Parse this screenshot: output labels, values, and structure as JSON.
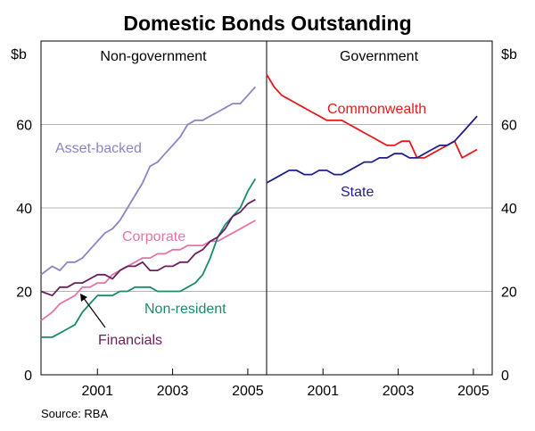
{
  "title": "Domestic Bonds Outstanding",
  "source": "Source: RBA",
  "colors": {
    "asset_backed": "#8c84c6",
    "corporate": "#e574a8",
    "non_resident": "#188a6e",
    "financials": "#6a1f5e",
    "commonwealth": "#e41a1c",
    "state": "#1f1f8c",
    "grid": "#b4b4b4",
    "axis": "#000000"
  },
  "chart_data": [
    {
      "type": "line",
      "panel_title": "Non-government",
      "ylabel": "$b",
      "ylim": [
        0,
        80
      ],
      "yticks": [
        0,
        20,
        40,
        60
      ],
      "xlim": [
        1999.5,
        2005.5
      ],
      "xticks": [
        2001,
        2003,
        2005
      ],
      "xtick_labels": [
        "2001",
        "2003",
        "2005"
      ],
      "grid": true,
      "series": [
        {
          "name": "Asset-backed",
          "color_key": "asset_backed",
          "x": [
            1999.5,
            1999.8,
            2000.0,
            2000.2,
            2000.4,
            2000.6,
            2000.8,
            2001.0,
            2001.2,
            2001.4,
            2001.6,
            2001.8,
            2002.0,
            2002.2,
            2002.4,
            2002.6,
            2002.8,
            2003.0,
            2003.2,
            2003.4,
            2003.6,
            2003.8,
            2004.0,
            2004.2,
            2004.4,
            2004.6,
            2004.8,
            2005.0,
            2005.2
          ],
          "values": [
            24,
            26,
            25,
            27,
            27,
            28,
            30,
            32,
            34,
            35,
            37,
            40,
            43,
            46,
            50,
            51,
            53,
            55,
            57,
            60,
            61,
            61,
            62,
            63,
            64,
            65,
            65,
            67,
            69
          ]
        },
        {
          "name": "Corporate",
          "color_key": "corporate",
          "x": [
            1999.5,
            1999.8,
            2000.0,
            2000.2,
            2000.4,
            2000.6,
            2000.8,
            2001.0,
            2001.2,
            2001.4,
            2001.6,
            2001.8,
            2002.0,
            2002.2,
            2002.4,
            2002.6,
            2002.8,
            2003.0,
            2003.2,
            2003.4,
            2003.6,
            2003.8,
            2004.0,
            2004.2,
            2004.4,
            2004.6,
            2004.8,
            2005.0,
            2005.2
          ],
          "values": [
            13,
            15,
            17,
            18,
            19,
            21,
            21,
            22,
            22,
            24,
            25,
            26,
            27,
            28,
            28,
            29,
            29,
            30,
            30,
            31,
            31,
            31,
            32,
            32,
            33,
            34,
            35,
            36,
            37
          ]
        },
        {
          "name": "Non-resident",
          "color_key": "non_resident",
          "x": [
            1999.5,
            1999.8,
            2000.0,
            2000.2,
            2000.4,
            2000.6,
            2000.8,
            2001.0,
            2001.2,
            2001.4,
            2001.6,
            2001.8,
            2002.0,
            2002.2,
            2002.4,
            2002.6,
            2002.8,
            2003.0,
            2003.2,
            2003.4,
            2003.6,
            2003.8,
            2004.0,
            2004.2,
            2004.4,
            2004.6,
            2004.8,
            2005.0,
            2005.2
          ],
          "values": [
            9,
            9,
            10,
            11,
            12,
            15,
            17,
            19,
            19,
            19,
            20,
            20,
            21,
            21,
            21,
            20,
            20,
            20,
            20,
            21,
            22,
            24,
            28,
            33,
            36,
            38,
            40,
            44,
            47
          ]
        },
        {
          "name": "Financials",
          "color_key": "financials",
          "x": [
            1999.5,
            1999.8,
            2000.0,
            2000.2,
            2000.4,
            2000.6,
            2000.8,
            2001.0,
            2001.2,
            2001.4,
            2001.6,
            2001.8,
            2002.0,
            2002.2,
            2002.4,
            2002.6,
            2002.8,
            2003.0,
            2003.2,
            2003.4,
            2003.6,
            2003.8,
            2004.0,
            2004.2,
            2004.4,
            2004.6,
            2004.8,
            2005.0,
            2005.2
          ],
          "values": [
            20,
            19,
            21,
            21,
            22,
            22,
            23,
            24,
            24,
            23,
            25,
            26,
            26,
            27,
            25,
            25,
            26,
            26,
            27,
            27,
            29,
            30,
            32,
            33,
            35,
            38,
            39,
            41,
            42
          ]
        }
      ],
      "annotations": [
        "Asset-backed",
        "Corporate",
        "Non-resident",
        "Financials"
      ]
    },
    {
      "type": "line",
      "panel_title": "Government",
      "ylabel": "$b",
      "ylim": [
        0,
        80
      ],
      "yticks": [
        0,
        20,
        40,
        60
      ],
      "xlim": [
        1999.5,
        2005.5
      ],
      "xticks": [
        2001,
        2003,
        2005
      ],
      "xtick_labels": [
        "2001",
        "2003",
        "2005"
      ],
      "grid": true,
      "series": [
        {
          "name": "Commonwealth",
          "color_key": "commonwealth",
          "x": [
            1999.5,
            1999.7,
            1999.9,
            2000.1,
            2000.3,
            2000.5,
            2000.7,
            2000.9,
            2001.1,
            2001.3,
            2001.5,
            2001.7,
            2001.9,
            2002.1,
            2002.3,
            2002.5,
            2002.7,
            2002.9,
            2003.1,
            2003.3,
            2003.5,
            2003.7,
            2003.9,
            2004.1,
            2004.3,
            2004.5,
            2004.7,
            2004.9,
            2005.1
          ],
          "values": [
            72,
            69,
            67,
            66,
            65,
            64,
            63,
            62,
            61,
            61,
            61,
            60,
            59,
            58,
            57,
            56,
            55,
            55,
            56,
            56,
            52,
            52,
            53,
            54,
            55,
            56,
            52,
            53,
            54
          ]
        },
        {
          "name": "State",
          "color_key": "state",
          "x": [
            1999.5,
            1999.7,
            1999.9,
            2000.1,
            2000.3,
            2000.5,
            2000.7,
            2000.9,
            2001.1,
            2001.3,
            2001.5,
            2001.7,
            2001.9,
            2002.1,
            2002.3,
            2002.5,
            2002.7,
            2002.9,
            2003.1,
            2003.3,
            2003.5,
            2003.7,
            2003.9,
            2004.1,
            2004.3,
            2004.5,
            2004.7,
            2004.9,
            2005.1
          ],
          "values": [
            46,
            47,
            48,
            49,
            49,
            48,
            48,
            49,
            49,
            48,
            48,
            49,
            50,
            51,
            51,
            52,
            52,
            53,
            53,
            52,
            52,
            53,
            54,
            55,
            55,
            56,
            58,
            60,
            62
          ]
        }
      ],
      "annotations": [
        "Commonwealth",
        "State"
      ]
    }
  ]
}
